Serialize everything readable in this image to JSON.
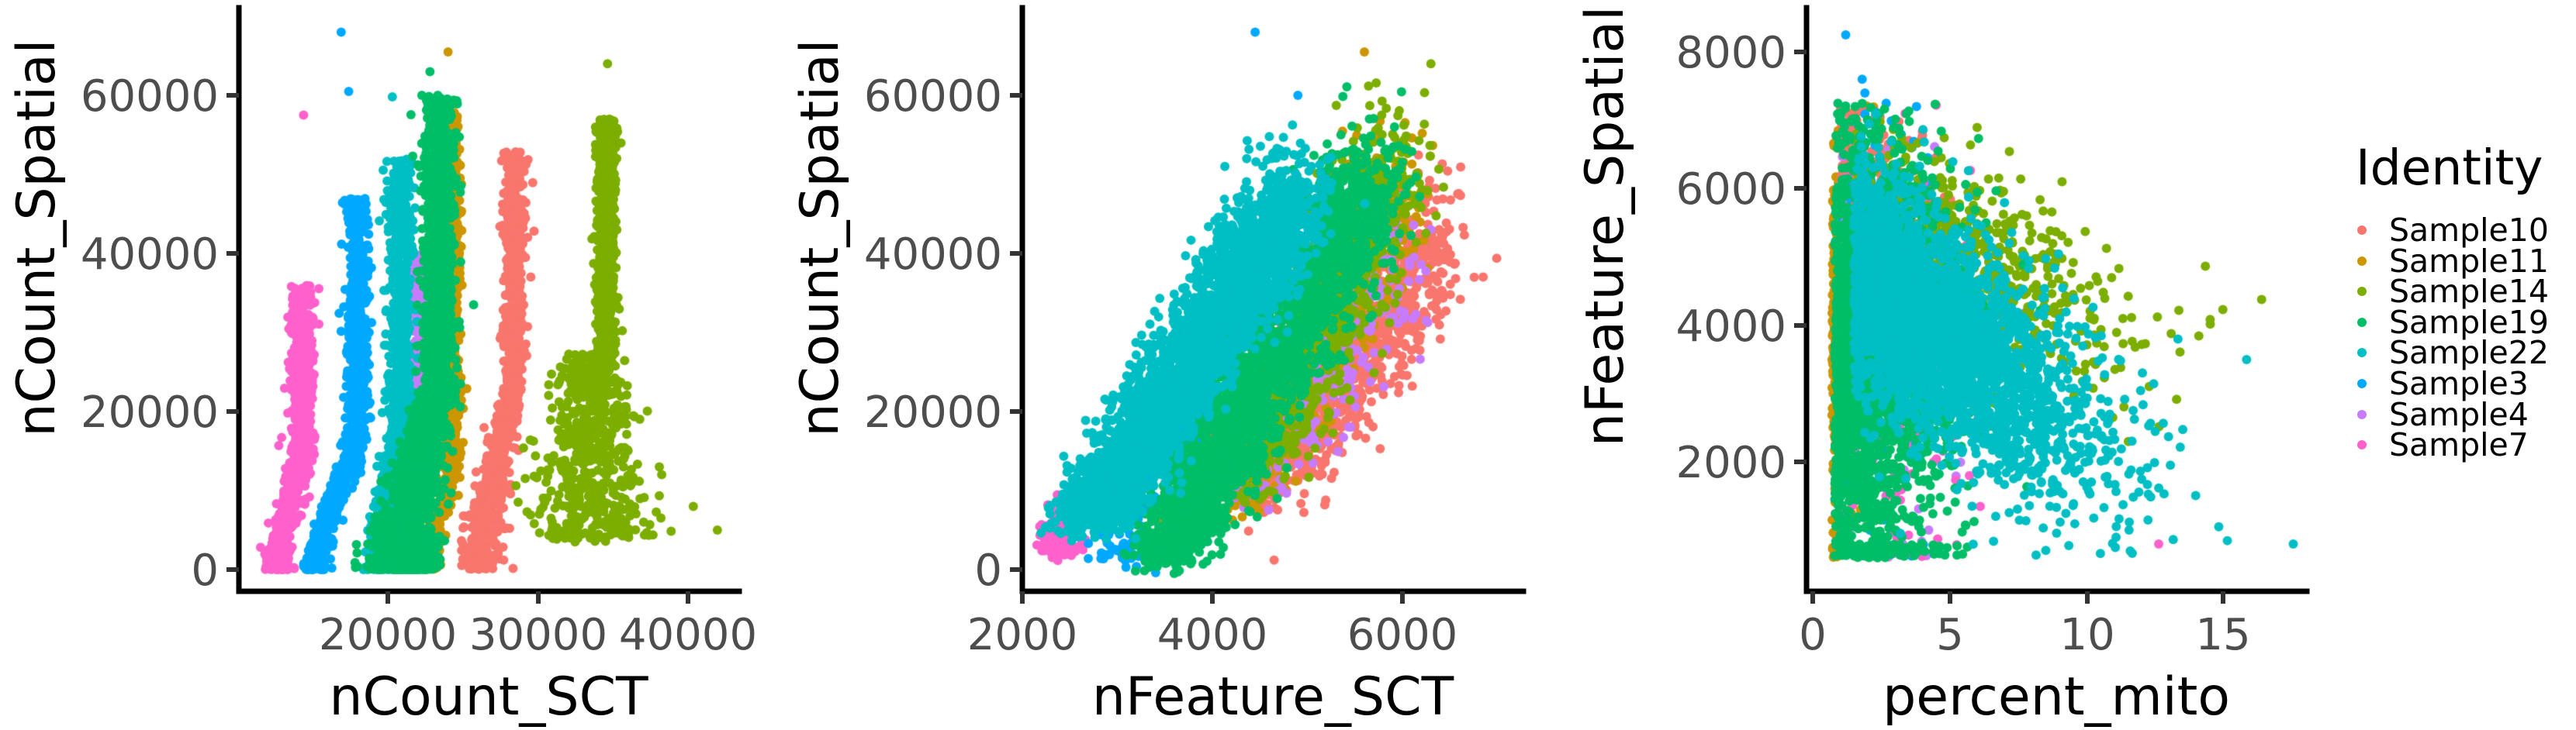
{
  "figure": {
    "background": "#ffffff",
    "legend": {
      "title": "Identity",
      "items": [
        {
          "label": "Sample10",
          "color": "#F8766D"
        },
        {
          "label": "Sample11",
          "color": "#CD9600"
        },
        {
          "label": "Sample14",
          "color": "#7CAE00"
        },
        {
          "label": "Sample19",
          "color": "#00BE67"
        },
        {
          "label": "Sample22",
          "color": "#00BFC4"
        },
        {
          "label": "Sample3",
          "color": "#00A9FF"
        },
        {
          "label": "Sample4",
          "color": "#C77CFF"
        },
        {
          "label": "Sample7",
          "color": "#FF61CC"
        }
      ]
    }
  },
  "chart_data": [
    {
      "type": "scatter",
      "title": "",
      "xlabel": "nCount_SCT",
      "ylabel": "nCount_Spatial",
      "xticks": [
        20000,
        30000,
        40000
      ],
      "xtick_labels": [
        "20000",
        "30000",
        "40000"
      ],
      "yticks": [
        0,
        20000,
        40000,
        60000
      ],
      "ytick_labels": [
        "0",
        "20000",
        "40000",
        "60000"
      ],
      "xlim": [
        10500,
        43500
      ],
      "ylim": [
        -2800,
        71000
      ],
      "grid": false,
      "legend_position": "right",
      "series": [
        {
          "name": "Sample10",
          "color": "#F8766D",
          "x_center": 28200,
          "x_range": [
            25500,
            29500
          ],
          "y_range": [
            1000,
            54000
          ],
          "shape": "s-curve band, wider at low y"
        },
        {
          "name": "Sample11",
          "color": "#CD9600",
          "x_center": 24000,
          "x_range": [
            22500,
            25000
          ],
          "y_range": [
            2000,
            65500
          ],
          "shape": "narrow vertical band"
        },
        {
          "name": "Sample14",
          "color": "#7CAE00",
          "x_center": 34500,
          "x_range": [
            30000,
            42000
          ],
          "y_range": [
            3000,
            64000
          ],
          "shape": "vertical band fanning out below 25000"
        },
        {
          "name": "Sample19",
          "color": "#00BE67",
          "x_center": 22500,
          "x_range": [
            20000,
            25500
          ],
          "y_range": [
            0,
            63000
          ],
          "shape": "dense wedge, wide at bottom"
        },
        {
          "name": "Sample22",
          "color": "#00BFC4",
          "x_center": 20500,
          "x_range": [
            18500,
            22000
          ],
          "y_range": [
            500,
            60000
          ],
          "shape": "s-curve band"
        },
        {
          "name": "Sample3",
          "color": "#00A9FF",
          "x_center": 17500,
          "x_range": [
            14500,
            19000
          ],
          "y_range": [
            0,
            68000
          ],
          "shape": "s-curve band"
        },
        {
          "name": "Sample4",
          "color": "#C77CFF",
          "x_center": 22000,
          "x_range": [
            19000,
            23000
          ],
          "y_range": [
            0,
            41000
          ],
          "shape": "s-curve band"
        },
        {
          "name": "Sample7",
          "color": "#FF61CC",
          "x_center": 14000,
          "x_range": [
            12000,
            15500
          ],
          "y_range": [
            1000,
            57500
          ],
          "shape": "s-curve band"
        }
      ]
    },
    {
      "type": "scatter",
      "title": "",
      "xlabel": "nFeature_SCT",
      "ylabel": "nCount_Spatial",
      "xticks": [
        2000,
        4000,
        6000
      ],
      "xtick_labels": [
        "2000",
        "4000",
        "6000"
      ],
      "yticks": [
        0,
        20000,
        40000,
        60000
      ],
      "ytick_labels": [
        "0",
        "20000",
        "40000",
        "60000"
      ],
      "xlim": [
        2000,
        7280
      ],
      "ylim": [
        -2800,
        71000
      ],
      "grid": false,
      "legend_position": "right",
      "series": [
        {
          "name": "Sample10",
          "color": "#F8766D",
          "x_range": [
            4300,
            7000
          ],
          "y_range": [
            1000,
            54000
          ]
        },
        {
          "name": "Sample11",
          "color": "#CD9600",
          "x_range": [
            3600,
            6600
          ],
          "y_range": [
            1000,
            65500
          ]
        },
        {
          "name": "Sample14",
          "color": "#7CAE00",
          "x_range": [
            4000,
            6500
          ],
          "y_range": [
            5000,
            64000
          ]
        },
        {
          "name": "Sample19",
          "color": "#00BE67",
          "x_range": [
            3200,
            6600
          ],
          "y_range": [
            0,
            63000
          ]
        },
        {
          "name": "Sample22",
          "color": "#00BFC4",
          "x_range": [
            2500,
            5600
          ],
          "y_range": [
            2000,
            60000
          ]
        },
        {
          "name": "Sample3",
          "color": "#00A9FF",
          "x_range": [
            2800,
            6300
          ],
          "y_range": [
            0,
            68000
          ]
        },
        {
          "name": "Sample4",
          "color": "#C77CFF",
          "x_range": [
            3500,
            6200
          ],
          "y_range": [
            1000,
            48000
          ]
        },
        {
          "name": "Sample7",
          "color": "#FF61CC",
          "x_range": [
            2200,
            4300
          ],
          "y_range": [
            1000,
            48000
          ]
        }
      ]
    },
    {
      "type": "scatter",
      "title": "",
      "xlabel": "percent_mito",
      "ylabel": "nFeature_Spatial",
      "xticks": [
        0,
        5,
        10,
        15
      ],
      "xtick_labels": [
        "0",
        "5",
        "10",
        "15"
      ],
      "yticks": [
        2000,
        4000,
        6000,
        8000
      ],
      "ytick_labels": [
        "2000",
        "4000",
        "6000",
        "8000"
      ],
      "xlim": [
        -0.2,
        18.0
      ],
      "ylim": [
        80,
        8650
      ],
      "grid": false,
      "legend_position": "right",
      "series": [
        {
          "name": "Sample10",
          "color": "#F8766D",
          "x_range": [
            0.8,
            12.5
          ],
          "y_range": [
            800,
            7300
          ]
        },
        {
          "name": "Sample11",
          "color": "#CD9600",
          "x_range": [
            0.6,
            8.5
          ],
          "y_range": [
            800,
            6700
          ]
        },
        {
          "name": "Sample14",
          "color": "#7CAE00",
          "x_range": [
            1.0,
            13.0
          ],
          "y_range": [
            2900,
            6500
          ]
        },
        {
          "name": "Sample19",
          "color": "#00BE67",
          "x_range": [
            0.7,
            6.5
          ],
          "y_range": [
            600,
            6800
          ]
        },
        {
          "name": "Sample22",
          "color": "#00BFC4",
          "x_range": [
            1.0,
            17.5
          ],
          "y_range": [
            800,
            6500
          ]
        },
        {
          "name": "Sample3",
          "color": "#00A9FF",
          "x_range": [
            1.0,
            5.2
          ],
          "y_range": [
            600,
            8250
          ]
        },
        {
          "name": "Sample4",
          "color": "#C77CFF",
          "x_range": [
            0.7,
            5.0
          ],
          "y_range": [
            600,
            6800
          ]
        },
        {
          "name": "Sample7",
          "color": "#FF61CC",
          "x_range": [
            0.8,
            12.5
          ],
          "y_range": [
            800,
            7200
          ]
        }
      ]
    }
  ]
}
